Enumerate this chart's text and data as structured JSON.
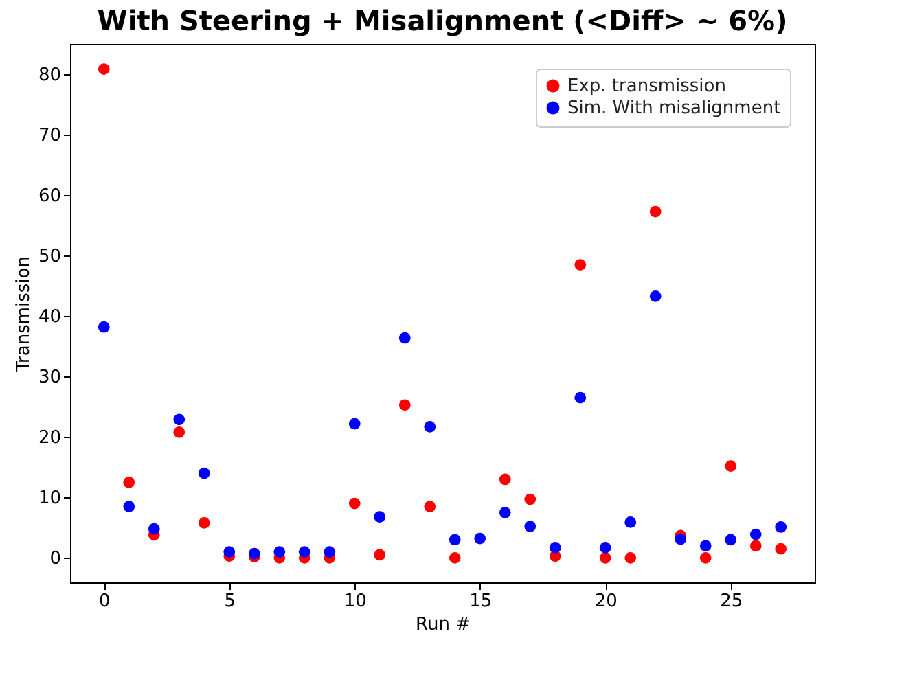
{
  "chart_data": {
    "type": "scatter",
    "title": "With Steering + Misalignment (<Diff> ~ 6%)",
    "xlabel": "Run #",
    "ylabel": "Transmission",
    "x": [
      0,
      1,
      2,
      3,
      4,
      5,
      6,
      7,
      8,
      9,
      10,
      11,
      12,
      13,
      14,
      15,
      16,
      17,
      18,
      19,
      20,
      21,
      22,
      23,
      24,
      25,
      26,
      27
    ],
    "series": [
      {
        "name": "Exp. transmission",
        "color": "#ff0000",
        "values": [
          80.9,
          12.5,
          3.8,
          20.8,
          5.8,
          0.3,
          0.2,
          0,
          0,
          0,
          9,
          0.5,
          25.3,
          8.5,
          0,
          null,
          13,
          9.7,
          0.3,
          48.5,
          0,
          0,
          57.3,
          3.7,
          0,
          15.2,
          2,
          1.5
        ]
      },
      {
        "name": "Sim. With misalignment",
        "color": "#0000ff",
        "values": [
          38.2,
          8.5,
          4.8,
          22.9,
          14,
          1,
          0.7,
          1,
          1,
          1,
          22.2,
          6.8,
          36.4,
          21.7,
          3,
          3.2,
          7.5,
          5.2,
          1.7,
          26.5,
          1.7,
          5.9,
          43.3,
          3.1,
          2,
          3,
          3.9,
          5.1
        ]
      }
    ],
    "xlim": [
      -1.35,
      28.35
    ],
    "ylim": [
      -4.05,
      85.05
    ],
    "xticks": [
      0,
      5,
      10,
      15,
      20,
      25
    ],
    "yticks": [
      0,
      10,
      20,
      30,
      40,
      50,
      60,
      70,
      80
    ],
    "legend": "top right",
    "marker": "circle",
    "grid": false
  }
}
